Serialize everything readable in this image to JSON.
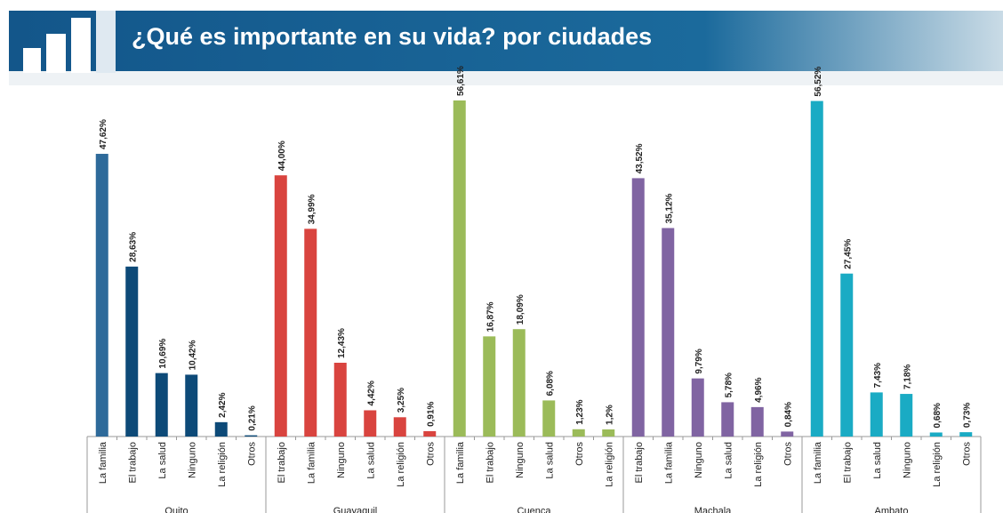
{
  "chart_data": {
    "type": "bar",
    "title": "¿Qué es importante en su vida? por  ciudades",
    "groups": [
      {
        "name": "Quito",
        "color": "#0d4a78",
        "colors": [
          "#2e6a9a",
          "#0d4a78",
          "#0d4a78",
          "#0d4a78",
          "#0d4a78",
          "#0d4a78"
        ],
        "categories": [
          "La familia",
          "El trabajo",
          "La salud",
          "Ninguno",
          "La religión",
          "Otros"
        ],
        "values": [
          47.62,
          28.63,
          10.69,
          10.42,
          2.42,
          0.21
        ],
        "value_labels": [
          "47,62%",
          "28,63%",
          "10,69%",
          "10,42%",
          "2,42%",
          "0,21%"
        ]
      },
      {
        "name": "Guayaquil",
        "color": "#d9443f",
        "categories": [
          "El trabajo",
          "La familia",
          "Ninguno",
          "La salud",
          "La religión",
          "Otros"
        ],
        "values": [
          44.0,
          34.99,
          12.43,
          4.42,
          3.25,
          0.91
        ],
        "value_labels": [
          "44,00%",
          "34,99%",
          "12,43%",
          "4,42%",
          "3,25%",
          "0,91%"
        ]
      },
      {
        "name": "Cuenca",
        "color": "#9bbb59",
        "categories": [
          "La familia",
          "El trabajo",
          "Ninguno",
          "La salud",
          "Otros",
          "La religión"
        ],
        "values": [
          56.61,
          16.87,
          18.09,
          6.08,
          1.23,
          1.2
        ],
        "value_labels": [
          "56,61%",
          "16,87%",
          "18,09%",
          "6,08%",
          "1,23%",
          "1,2%"
        ]
      },
      {
        "name": "Machala",
        "color": "#8064a2",
        "categories": [
          "El trabajo",
          "La familia",
          "Ninguno",
          "La salud",
          "La religión",
          "Otros"
        ],
        "values": [
          43.52,
          35.12,
          9.79,
          5.78,
          4.96,
          0.84
        ],
        "value_labels": [
          "43,52%",
          "35,12%",
          "9,79%",
          "5,78%",
          "4,96%",
          "0,84%"
        ]
      },
      {
        "name": "Ambato",
        "color": "#1aabc4",
        "categories": [
          "La familia",
          "El trabajo",
          "La salud",
          "Ninguno",
          "La religión",
          "Otros"
        ],
        "values": [
          56.52,
          27.45,
          7.43,
          7.18,
          0.68,
          0.73
        ],
        "value_labels": [
          "56,52%",
          "27,45%",
          "7,43%",
          "7,18%",
          "0,68%",
          "0,73%"
        ]
      }
    ]
  }
}
